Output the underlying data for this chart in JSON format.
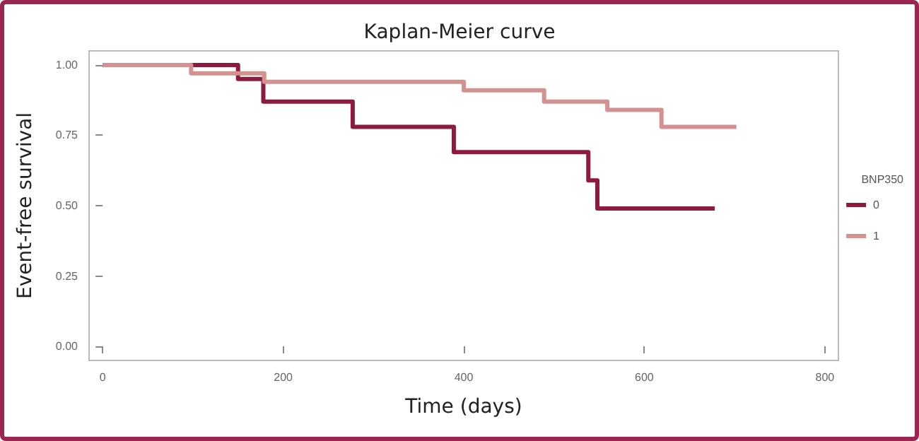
{
  "chart_data": {
    "type": "step",
    "title": "Kaplan-Meier curve",
    "xlabel": "Time (days)",
    "ylabel": "Event-free survival",
    "legend_title": "BNP350",
    "series": [
      {
        "name": "0",
        "color": "#8e1b3f",
        "x": [
          0,
          150,
          178,
          277,
          389,
          538,
          548,
          678
        ],
        "values": [
          1,
          0.95,
          0.87,
          0.78,
          0.69,
          0.59,
          0.49,
          0.49
        ]
      },
      {
        "name": "1",
        "color": "#d4918f",
        "x": [
          0,
          98,
          179,
          400,
          489,
          559,
          619,
          702
        ],
        "values": [
          1,
          0.97,
          0.94,
          0.91,
          0.87,
          0.84,
          0.78,
          0.78
        ]
      }
    ],
    "xlim": [
      -15,
      815
    ],
    "xticks": [
      0,
      200,
      400,
      600,
      800
    ],
    "ylim": [
      -0.05,
      1.05
    ],
    "yticks": [
      {
        "value": 0,
        "label": "0.00"
      },
      {
        "value": 0.25,
        "label": "0.25"
      },
      {
        "value": 0.5,
        "label": "0.50"
      },
      {
        "value": 0.75,
        "label": "0.75"
      },
      {
        "value": 1,
        "label": "1.00"
      }
    ],
    "grid": false,
    "legend": "right",
    "marker": "none",
    "line_style": "solid"
  }
}
